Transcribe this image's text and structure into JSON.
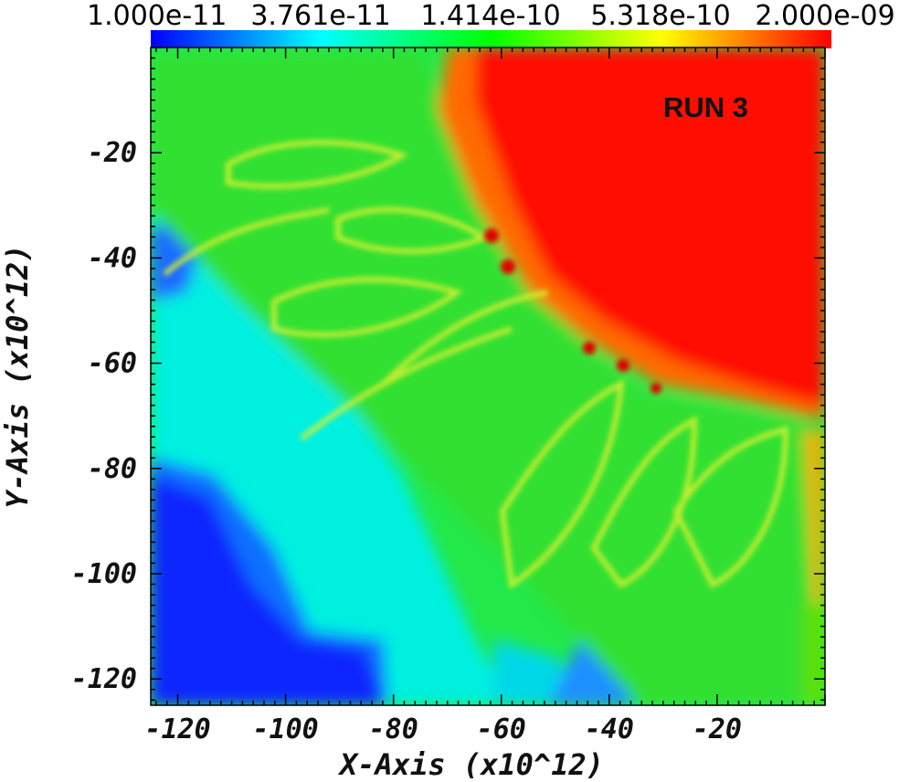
{
  "colorbar": {
    "labels": [
      "1.000e-11",
      "3.761e-11",
      "1.414e-10",
      "5.318e-10",
      "2.000e-09"
    ],
    "colors": [
      "#0000ff",
      "#00ffff",
      "#00ff00",
      "#ffff00",
      "#ff0000"
    ]
  },
  "annotation": "RUN 3",
  "chart_data": {
    "type": "heatmap",
    "title": "",
    "xlabel": "X-Axis (x10^12)",
    "ylabel": "Y-Axis (x10^12)",
    "xlim": [
      -125,
      0
    ],
    "ylim": [
      -125,
      0
    ],
    "x_ticks": [
      -120,
      -100,
      -80,
      -60,
      -40,
      -20
    ],
    "y_ticks": [
      -20,
      -40,
      -60,
      -80,
      -100,
      -120
    ],
    "colorscale": "log",
    "color_range": [
      1e-11,
      2e-09
    ],
    "grid": false,
    "legend": "colorbar-top"
  }
}
